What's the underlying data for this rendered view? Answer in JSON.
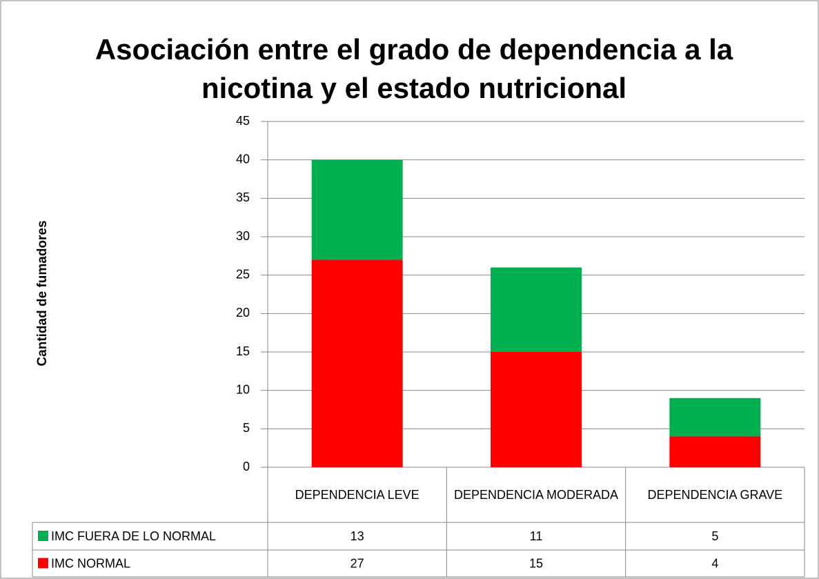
{
  "chart_data": {
    "type": "stacked_bar",
    "title": "Asociación entre el grado de dependencia a la nicotina y el estado nutricional",
    "ylabel": "Cantidad de fumadores",
    "categories": [
      "DEPENDENCIA LEVE",
      "DEPENDENCIA MODERADA",
      "DEPENDENCIA GRAVE"
    ],
    "series": [
      {
        "name": "IMC NORMAL",
        "color": "#ff0000",
        "values": [
          27,
          15,
          4
        ]
      },
      {
        "name": "IMC FUERA DE LO NORMAL",
        "color": "#00b050",
        "values": [
          13,
          11,
          5
        ]
      }
    ],
    "ylim": [
      0,
      45
    ],
    "yticks": [
      0,
      5,
      10,
      15,
      20,
      25,
      30,
      35,
      40,
      45
    ],
    "grid": true
  }
}
